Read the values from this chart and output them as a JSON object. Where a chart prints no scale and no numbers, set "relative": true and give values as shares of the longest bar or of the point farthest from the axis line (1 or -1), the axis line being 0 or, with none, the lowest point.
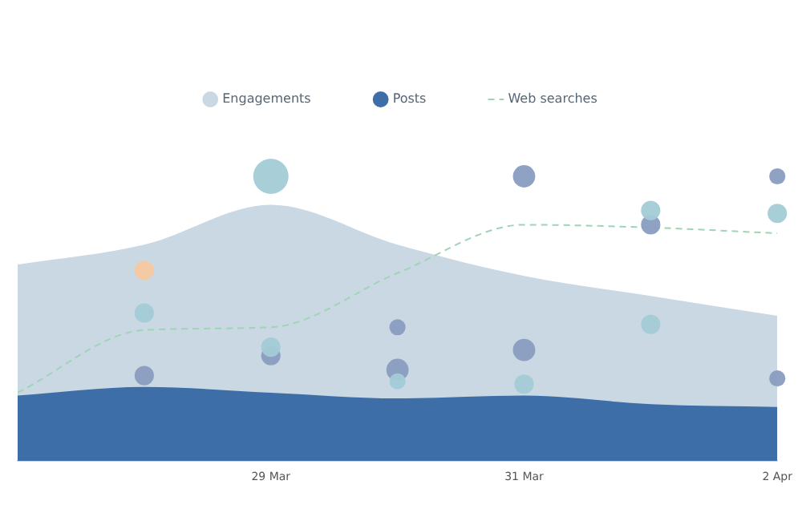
{
  "chart_data": {
    "type": "area",
    "relative": true,
    "grid": false,
    "legend": "top",
    "x": [
      "--03-27",
      "--03-28",
      "--03-29",
      "--03-30",
      "--03-31",
      "--04-01",
      "--04-02"
    ],
    "xlim": [
      "--03-27",
      "--04-02"
    ],
    "xticks": [
      {
        "value": "--03-29",
        "label": "29 Mar"
      },
      {
        "value": "--03-31",
        "label": "31 Mar"
      },
      {
        "value": "--04-02",
        "label": "2 Apr"
      }
    ],
    "series": [
      {
        "name": "Engagements",
        "marker": "none",
        "color": "#c9d8e3",
        "values": [
          0.69,
          0.76,
          0.9,
          0.76,
          0.65,
          0.58,
          0.51
        ]
      },
      {
        "name": "Posts",
        "marker": "none",
        "color": "#3d6ea8",
        "values": [
          0.23,
          0.26,
          0.24,
          0.22,
          0.23,
          0.2,
          0.19
        ]
      },
      {
        "name": "Web searches",
        "type": "line",
        "marker": "none",
        "line_style": "dashed",
        "color": "#9fd4b5",
        "values": [
          0.24,
          0.46,
          0.47,
          0.66,
          0.83,
          0.82,
          0.8
        ]
      },
      {
        "type": "bubble",
        "color": "#a3cbd6",
        "x": [
          "--03-28",
          "--03-29",
          "--03-29",
          "--03-30",
          "--03-31",
          "--04-01",
          "--04-01",
          "--04-02"
        ],
        "values": [
          0.52,
          1,
          0.4,
          0.28,
          0.27,
          0.88,
          0.48,
          0.87
        ],
        "sizes": [
          0.3,
          1,
          0.3,
          0.21,
          0.3,
          0.3,
          0.3,
          0.3
        ]
      },
      {
        "type": "bubble",
        "color": "#8a9dc0",
        "x": [
          "--03-28",
          "--03-29",
          "--03-30",
          "--03-30",
          "--03-31",
          "--03-31",
          "--04-01",
          "--04-02",
          "--04-02"
        ],
        "values": [
          0.3,
          0.37,
          0.47,
          0.32,
          1,
          0.39,
          0.83,
          1,
          0.29
        ],
        "sizes": [
          0.3,
          0.3,
          0.21,
          0.4,
          0.4,
          0.4,
          0.3,
          0.21,
          0.21
        ]
      },
      {
        "type": "bubble",
        "color": "#f5c9a0",
        "x": [
          "--03-28"
        ],
        "values": [
          0.67
        ],
        "sizes": [
          0.3
        ]
      }
    ]
  }
}
